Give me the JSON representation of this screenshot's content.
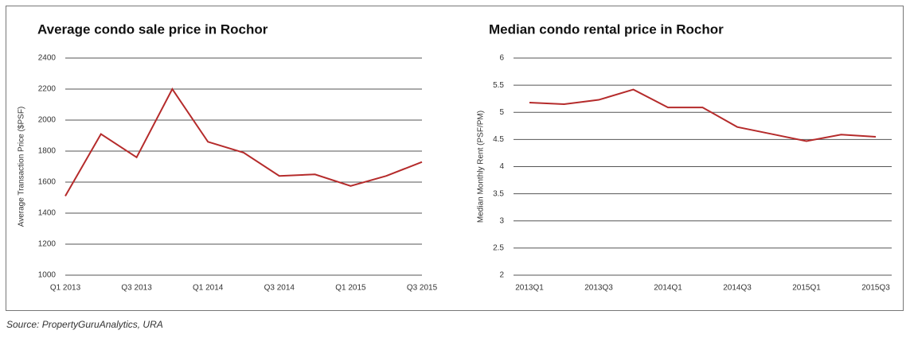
{
  "chart_data": [
    {
      "type": "line",
      "title": "Average condo sale price in Rochor",
      "y_label": "Average Transaction Price ($PSF)",
      "categories": [
        "Q1 2013",
        null,
        "Q3 2013",
        null,
        "Q1 2014",
        null,
        "Q3 2014",
        null,
        "Q1 2015",
        null,
        "Q3 2015"
      ],
      "values": [
        1510,
        1910,
        1760,
        2200,
        1860,
        1790,
        1640,
        1650,
        1575,
        1640,
        1730
      ],
      "color": "#b52b2b",
      "ylim": [
        1000,
        2400
      ],
      "yticks": [
        1000,
        1200,
        1400,
        1600,
        1800,
        2000,
        2200,
        2400
      ],
      "grid": true
    },
    {
      "type": "line",
      "title": "Median condo rental price in Rochor",
      "y_label": "Median Monthly Rent (PSF/PM)",
      "categories": [
        "2013Q1",
        null,
        "2013Q3",
        null,
        "2014Q1",
        null,
        "2014Q3",
        null,
        "2015Q1",
        null,
        "2015Q3"
      ],
      "values": [
        5.18,
        5.15,
        5.23,
        5.42,
        5.09,
        5.09,
        4.73,
        4.6,
        4.47,
        4.59,
        4.55
      ],
      "color": "#b52b2b",
      "ylim": [
        2,
        6
      ],
      "yticks": [
        2,
        2.5,
        3,
        3.5,
        4,
        4.5,
        5,
        5.5,
        6
      ],
      "grid": true
    }
  ],
  "source": "Source: PropertyGuruAnalytics, URA"
}
